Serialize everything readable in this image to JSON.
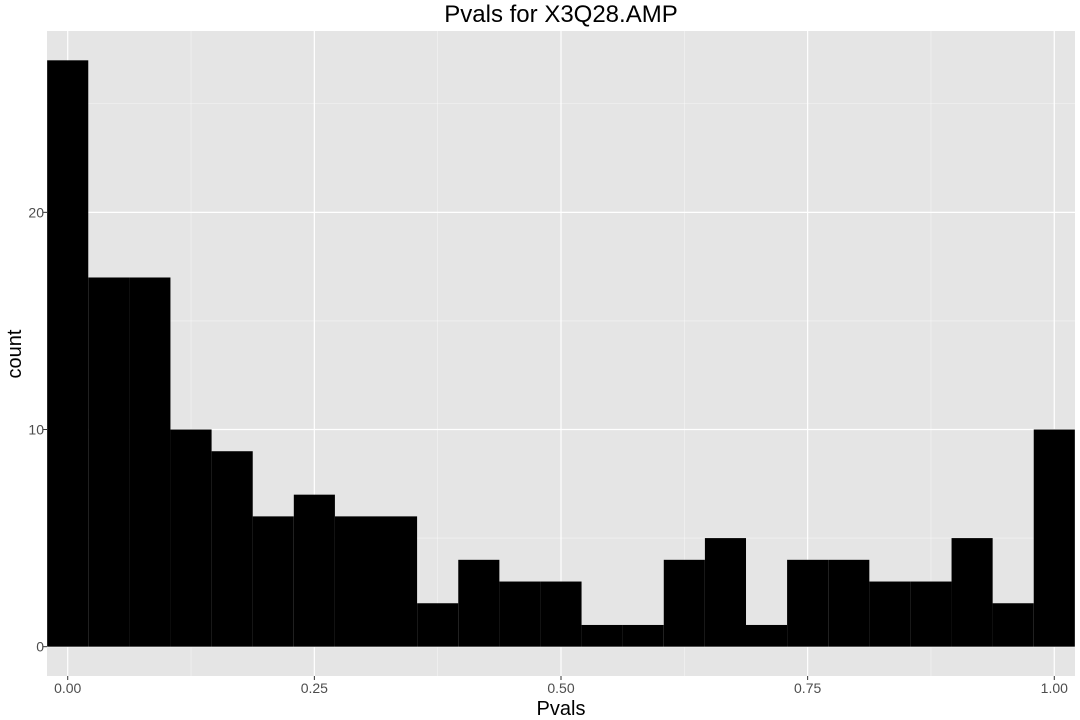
{
  "chart_data": {
    "type": "bar",
    "title": "Pvals for X3Q28.AMP",
    "xlabel": "Pvals",
    "ylabel": "count",
    "xlim": [
      -0.021,
      1.021
    ],
    "ylim": [
      -1.35,
      28.35
    ],
    "bin_width": 0.04166,
    "bin_centers": [
      0.0,
      0.0417,
      0.0833,
      0.125,
      0.1667,
      0.2083,
      0.25,
      0.2917,
      0.3333,
      0.375,
      0.4167,
      0.4583,
      0.5,
      0.5417,
      0.5833,
      0.625,
      0.6667,
      0.7083,
      0.75,
      0.7917,
      0.8333,
      0.875,
      0.9167,
      0.9583,
      1.0
    ],
    "values": [
      27,
      17,
      17,
      10,
      9,
      6,
      7,
      6,
      6,
      2,
      4,
      3,
      3,
      1,
      1,
      4,
      5,
      1,
      4,
      4,
      3,
      3,
      5,
      2,
      10
    ],
    "x_ticks": [
      0.0,
      0.25,
      0.5,
      0.75,
      1.0
    ],
    "x_tick_labels": [
      "0.00",
      "0.25",
      "0.50",
      "0.75",
      "1.00"
    ],
    "y_ticks": [
      0,
      10,
      20
    ],
    "y_tick_labels": [
      "0",
      "10",
      "20"
    ],
    "grid": true,
    "background_color": "#e5e5e5",
    "grid_color": "#ffffff",
    "bar_color": "#000000"
  }
}
